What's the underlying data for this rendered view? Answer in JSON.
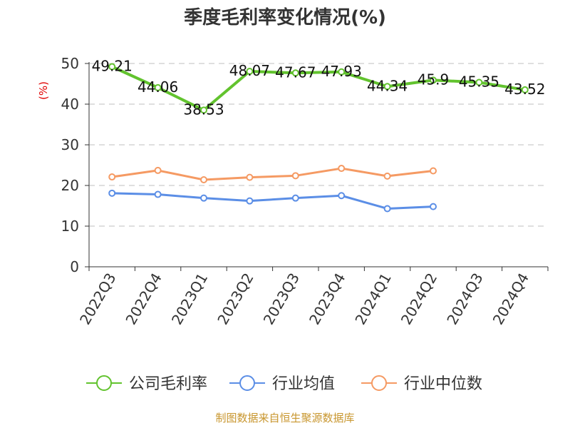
{
  "chart_data": {
    "type": "line",
    "title": "季度毛利率变化情况(%)",
    "ylabel": "(%)",
    "xlabel": "",
    "ylim": [
      0,
      50
    ],
    "yticks": [
      0,
      10,
      20,
      30,
      40,
      50
    ],
    "grid": "horizontal-dashed",
    "legend_position": "bottom",
    "categories": [
      "2022Q3",
      "2022Q4",
      "2023Q1",
      "2023Q2",
      "2023Q3",
      "2023Q4",
      "2024Q1",
      "2024Q2",
      "2024Q3",
      "2024Q4"
    ],
    "series": [
      {
        "name": "公司毛利率",
        "color": "#62c32e",
        "values": [
          49.21,
          44.06,
          38.53,
          48.07,
          47.67,
          47.93,
          44.34,
          45.9,
          45.35,
          43.52
        ],
        "labels": [
          "49.21",
          "44.06",
          "38.53",
          "48.07",
          "47.67",
          "47.93",
          "44.34",
          "45.9",
          "45.35",
          "43.52"
        ]
      },
      {
        "name": "行业均值",
        "color": "#5b8ee6",
        "values": [
          18.1,
          17.8,
          16.9,
          16.2,
          16.9,
          17.5,
          14.3,
          14.8,
          null,
          null
        ]
      },
      {
        "name": "行业中位数",
        "color": "#f59a63",
        "values": [
          22.1,
          23.7,
          21.4,
          22.0,
          22.4,
          24.2,
          22.3,
          23.6,
          null,
          null
        ]
      }
    ]
  },
  "footer": {
    "source": "制图数据来自恒生聚源数据库"
  }
}
